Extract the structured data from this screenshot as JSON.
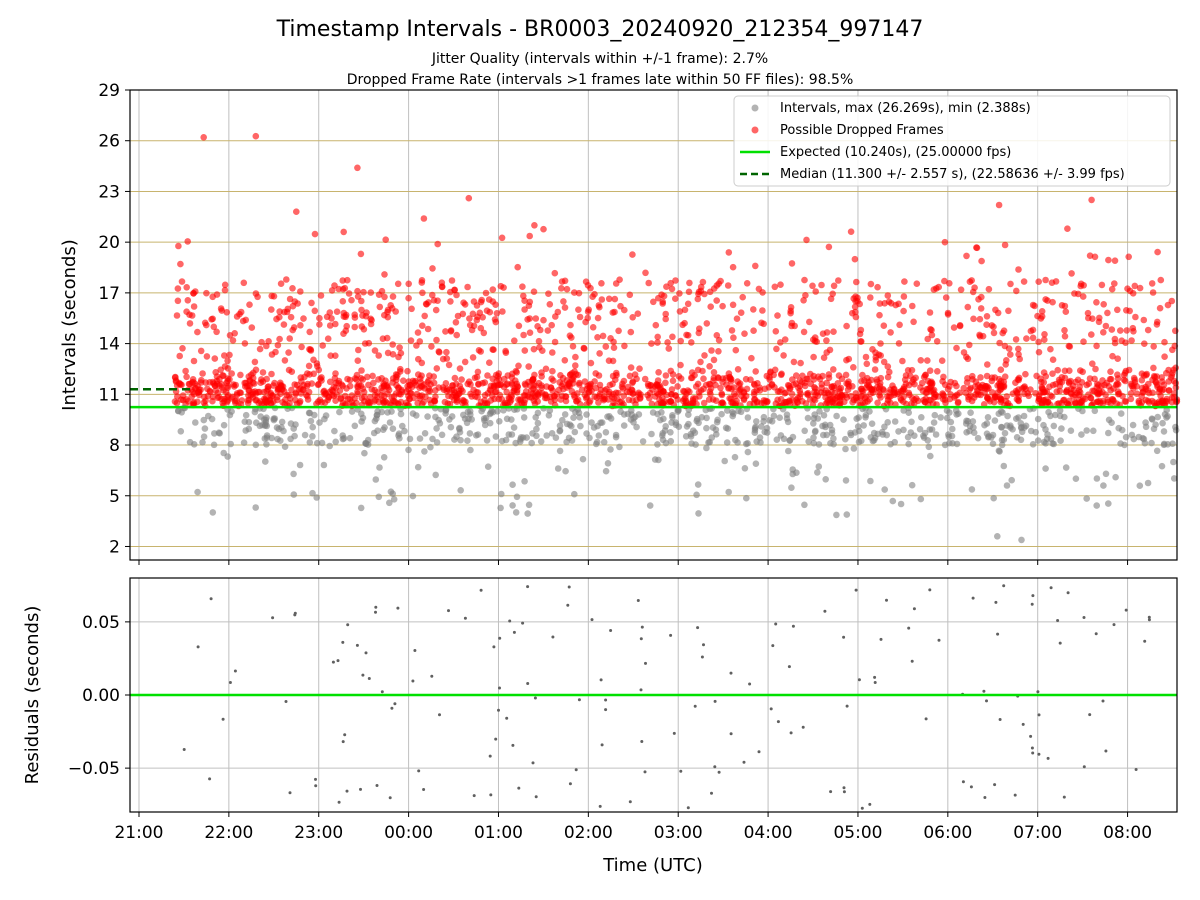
{
  "chart_data": {
    "type": "scatter",
    "title": "Timestamp Intervals - BR0003_20240920_212354_997147",
    "subtitle_lines": [
      "Jitter Quality (intervals within +/-1 frame): 2.7%",
      "Dropped Frame Rate (intervals >1 frames late within 50 FF files): 98.5%"
    ],
    "xlabel": "Time (UTC)",
    "x_ticks": [
      "21:00",
      "22:00",
      "23:00",
      "00:00",
      "01:00",
      "02:00",
      "03:00",
      "04:00",
      "05:00",
      "06:00",
      "07:00",
      "08:00"
    ],
    "x_range_hours": [
      20.9,
      32.55
    ],
    "data_start_hour": 21.4,
    "data_end_hour": 32.55,
    "top_panel": {
      "ylabel": "Intervals (seconds)",
      "ylim": [
        1.2,
        29.0
      ],
      "y_ticks": [
        2,
        5,
        8,
        11,
        14,
        17,
        20,
        23,
        26,
        29
      ],
      "grid": true,
      "legend_position": "top-right",
      "legend": [
        "Intervals, max (26.269s), min (2.388s)",
        "Possible Dropped Frames",
        "Expected (10.240s), (25.00000 fps)",
        "Median (11.300 +/- 2.557 s), (22.58636 +/- 3.99 fps)"
      ],
      "expected_interval": 10.24,
      "median_interval": 11.3,
      "colors": {
        "normal": "#808080",
        "dropped": "#ff0000",
        "expected": "#00e000",
        "median": "#006400",
        "ygrid": "#c8b46e",
        "xgrid": "#c0c0c0"
      },
      "notable_points": [
        {
          "x": 21.72,
          "y": 26.2
        },
        {
          "x": 22.3,
          "y": 26.27
        },
        {
          "x": 23.43,
          "y": 24.4
        },
        {
          "x": 22.75,
          "y": 21.8
        },
        {
          "x": 24.67,
          "y": 22.6
        },
        {
          "x": 30.57,
          "y": 22.2
        },
        {
          "x": 31.6,
          "y": 22.5
        },
        {
          "x": 24.17,
          "y": 21.4
        },
        {
          "x": 25.4,
          "y": 21.0
        },
        {
          "x": 30.55,
          "y": 2.6
        },
        {
          "x": 30.82,
          "y": 2.39
        }
      ],
      "typical_ranges": {
        "normal_low": 8.0,
        "normal_high": 10.2,
        "dense_band_low": 10.3,
        "dense_band_high": 12.0,
        "scatter_high": 17.8
      },
      "approx_point_count": 2900
    },
    "bottom_panel": {
      "ylabel": "Residuals (seconds)",
      "ylim": [
        -0.08,
        0.08
      ],
      "y_ticks": [
        -0.05,
        0.0,
        0.05
      ],
      "y_tick_labels": [
        "−0.05",
        "0.00",
        "0.05"
      ],
      "zero_line_color": "#00e000",
      "point_color": "#606060",
      "approx_point_count": 170
    }
  }
}
